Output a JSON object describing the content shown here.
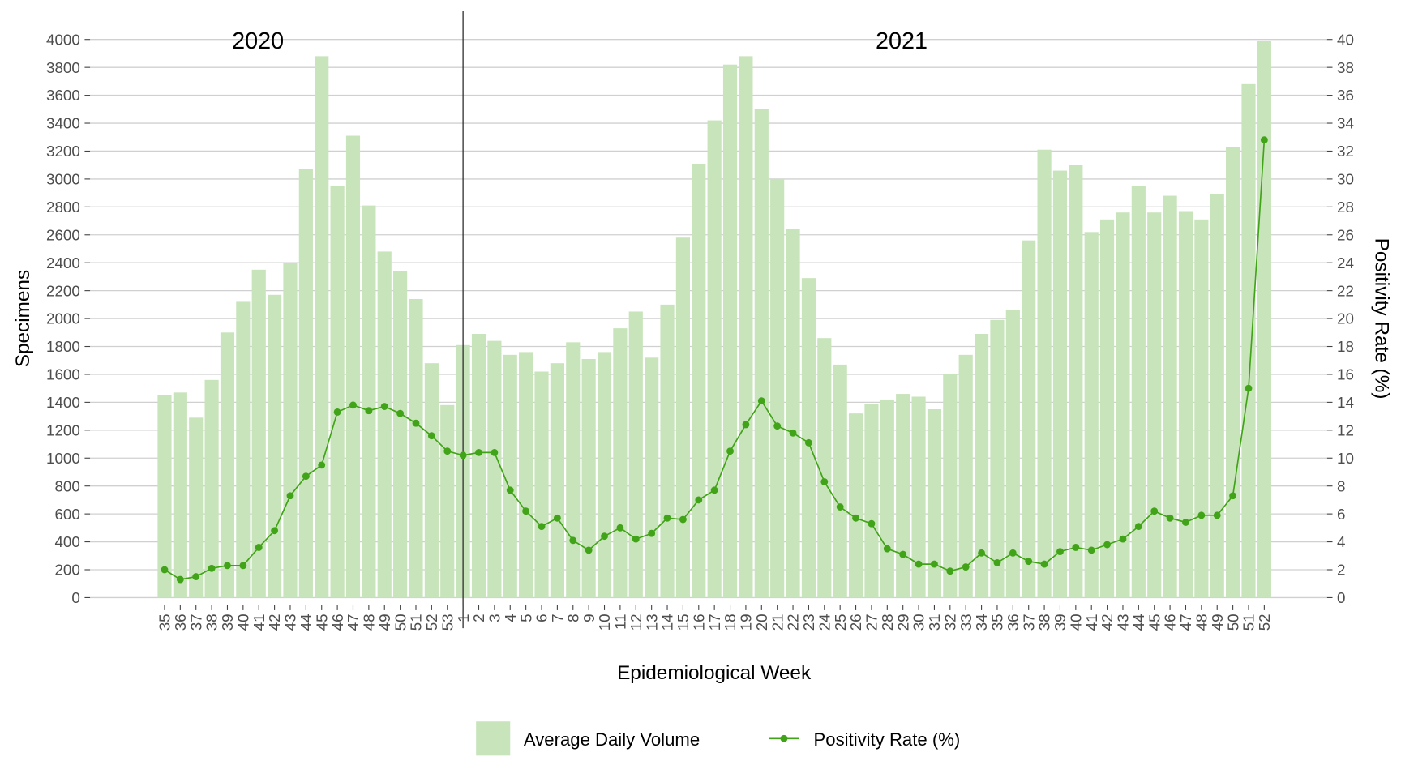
{
  "chart_data": {
    "type": "bar+line",
    "xlabel": "Epidemiological Week",
    "ylabel_left": "Specimens",
    "ylabel_right": "Positivity Rate (%)",
    "ylim_left": [
      0,
      4000
    ],
    "ylim_right": [
      0,
      40
    ],
    "yticks_left": [
      0,
      200,
      400,
      600,
      800,
      1000,
      1200,
      1400,
      1600,
      1800,
      2000,
      2200,
      2400,
      2600,
      2800,
      3000,
      3200,
      3400,
      3600,
      3800,
      4000
    ],
    "yticks_right": [
      0,
      2,
      4,
      6,
      8,
      10,
      12,
      14,
      16,
      18,
      20,
      22,
      24,
      26,
      28,
      30,
      32,
      34,
      36,
      38,
      40
    ],
    "year_labels": [
      "2020",
      "2021"
    ],
    "grid": true,
    "legend_position": "bottom",
    "categories": [
      "35",
      "36",
      "37",
      "38",
      "39",
      "40",
      "41",
      "42",
      "43",
      "44",
      "45",
      "46",
      "47",
      "48",
      "49",
      "50",
      "51",
      "52",
      "53",
      "1",
      "2",
      "3",
      "4",
      "5",
      "6",
      "7",
      "8",
      "9",
      "10",
      "11",
      "12",
      "13",
      "14",
      "15",
      "16",
      "17",
      "18",
      "19",
      "20",
      "21",
      "22",
      "23",
      "24",
      "25",
      "26",
      "27",
      "28",
      "29",
      "30",
      "31",
      "32",
      "33",
      "34",
      "35",
      "36",
      "37",
      "38",
      "39",
      "40",
      "41",
      "42",
      "43",
      "44",
      "45",
      "46",
      "47",
      "48",
      "49",
      "50",
      "51",
      "52"
    ],
    "series": [
      {
        "name": "Average Daily Volume",
        "type": "bar",
        "axis": "left",
        "color": "#c8e4bb",
        "values": [
          1450,
          1470,
          1290,
          1560,
          1900,
          2120,
          2350,
          2170,
          2400,
          3070,
          3880,
          2950,
          3310,
          2810,
          2480,
          2340,
          2140,
          1680,
          1380,
          1810,
          1890,
          1840,
          1740,
          1760,
          1620,
          1680,
          1830,
          1710,
          1760,
          1930,
          2050,
          1720,
          2100,
          2580,
          3110,
          3420,
          3820,
          3880,
          3500,
          3000,
          2640,
          2290,
          1860,
          1670,
          1320,
          1390,
          1420,
          1460,
          1440,
          1350,
          1600,
          1740,
          1890,
          1990,
          2060,
          2560,
          3210,
          3060,
          3100,
          2620,
          2710,
          2760,
          2950,
          2760,
          2880,
          2770,
          2710,
          2890,
          3230,
          3680,
          3990
        ]
      },
      {
        "name": "Positivity Rate (%)",
        "type": "line",
        "axis": "right",
        "color": "#41a317",
        "values": [
          2.0,
          1.3,
          1.5,
          2.1,
          2.3,
          2.3,
          3.6,
          4.8,
          7.3,
          8.7,
          9.5,
          13.3,
          13.8,
          13.4,
          13.7,
          13.2,
          12.5,
          11.6,
          10.5,
          10.2,
          10.4,
          10.4,
          7.7,
          6.2,
          5.1,
          5.7,
          4.1,
          3.4,
          4.4,
          5.0,
          4.2,
          4.6,
          5.7,
          5.6,
          7.0,
          7.7,
          10.5,
          12.4,
          14.1,
          12.3,
          11.8,
          11.1,
          8.3,
          6.5,
          5.7,
          5.3,
          3.5,
          3.1,
          2.4,
          2.4,
          1.9,
          2.2,
          3.2,
          2.5,
          3.2,
          2.6,
          2.4,
          3.3,
          3.6,
          3.4,
          3.8,
          4.2,
          5.1,
          6.2,
          5.7,
          5.4,
          5.9,
          5.9,
          7.3,
          15.0,
          32.8
        ]
      }
    ]
  }
}
